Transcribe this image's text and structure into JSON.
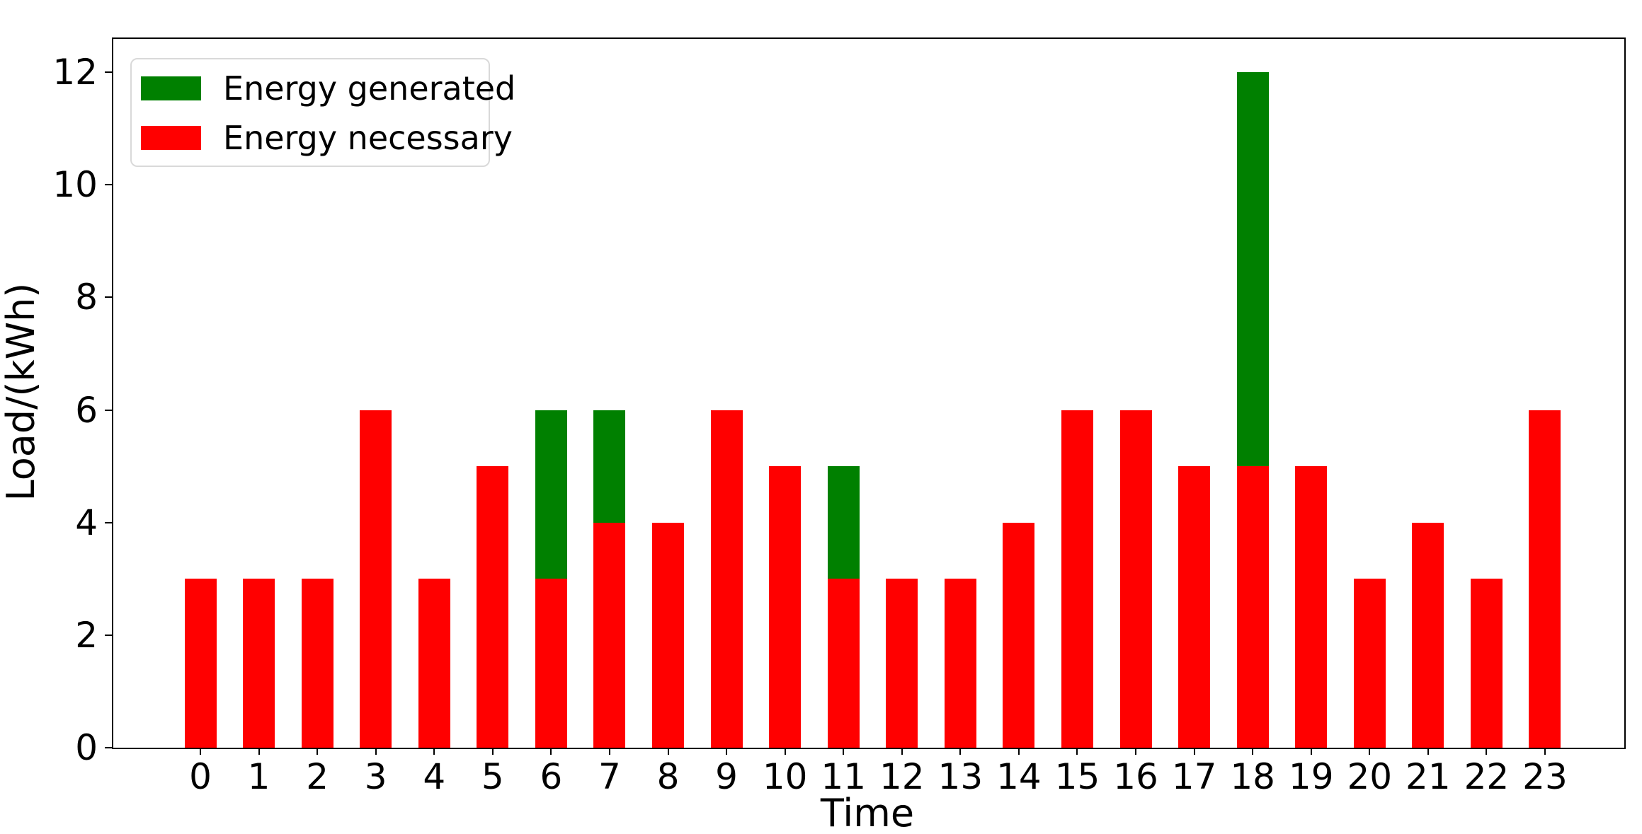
{
  "chart_data": {
    "type": "bar",
    "stacked": true,
    "title": "",
    "xlabel": "Time",
    "ylabel": "Load/(kWh)",
    "categories": [
      0,
      1,
      2,
      3,
      4,
      5,
      6,
      7,
      8,
      9,
      10,
      11,
      12,
      13,
      14,
      15,
      16,
      17,
      18,
      19,
      20,
      21,
      22,
      23
    ],
    "series": [
      {
        "name": "Energy necessary",
        "color": "#ff0000",
        "values": [
          3,
          3,
          3,
          6,
          3,
          5,
          3,
          4,
          4,
          6,
          5,
          3,
          3,
          3,
          4,
          6,
          6,
          5,
          5,
          5,
          3,
          4,
          3,
          6
        ]
      },
      {
        "name": "Energy generated",
        "color": "#008000",
        "values": [
          0,
          0,
          0,
          0,
          0,
          0,
          3,
          2,
          0,
          0,
          0,
          2,
          0,
          0,
          0,
          0,
          0,
          0,
          7,
          0,
          0,
          0,
          0,
          0
        ]
      }
    ],
    "ylim": [
      0,
      12
    ],
    "yticks": [
      0,
      2,
      4,
      6,
      8,
      10,
      12
    ],
    "grid": false,
    "legend": {
      "position": "upper left",
      "items": [
        {
          "label": "Energy generated",
          "color": "#008000"
        },
        {
          "label": "Energy necessary",
          "color": "#ff0000"
        }
      ]
    }
  }
}
